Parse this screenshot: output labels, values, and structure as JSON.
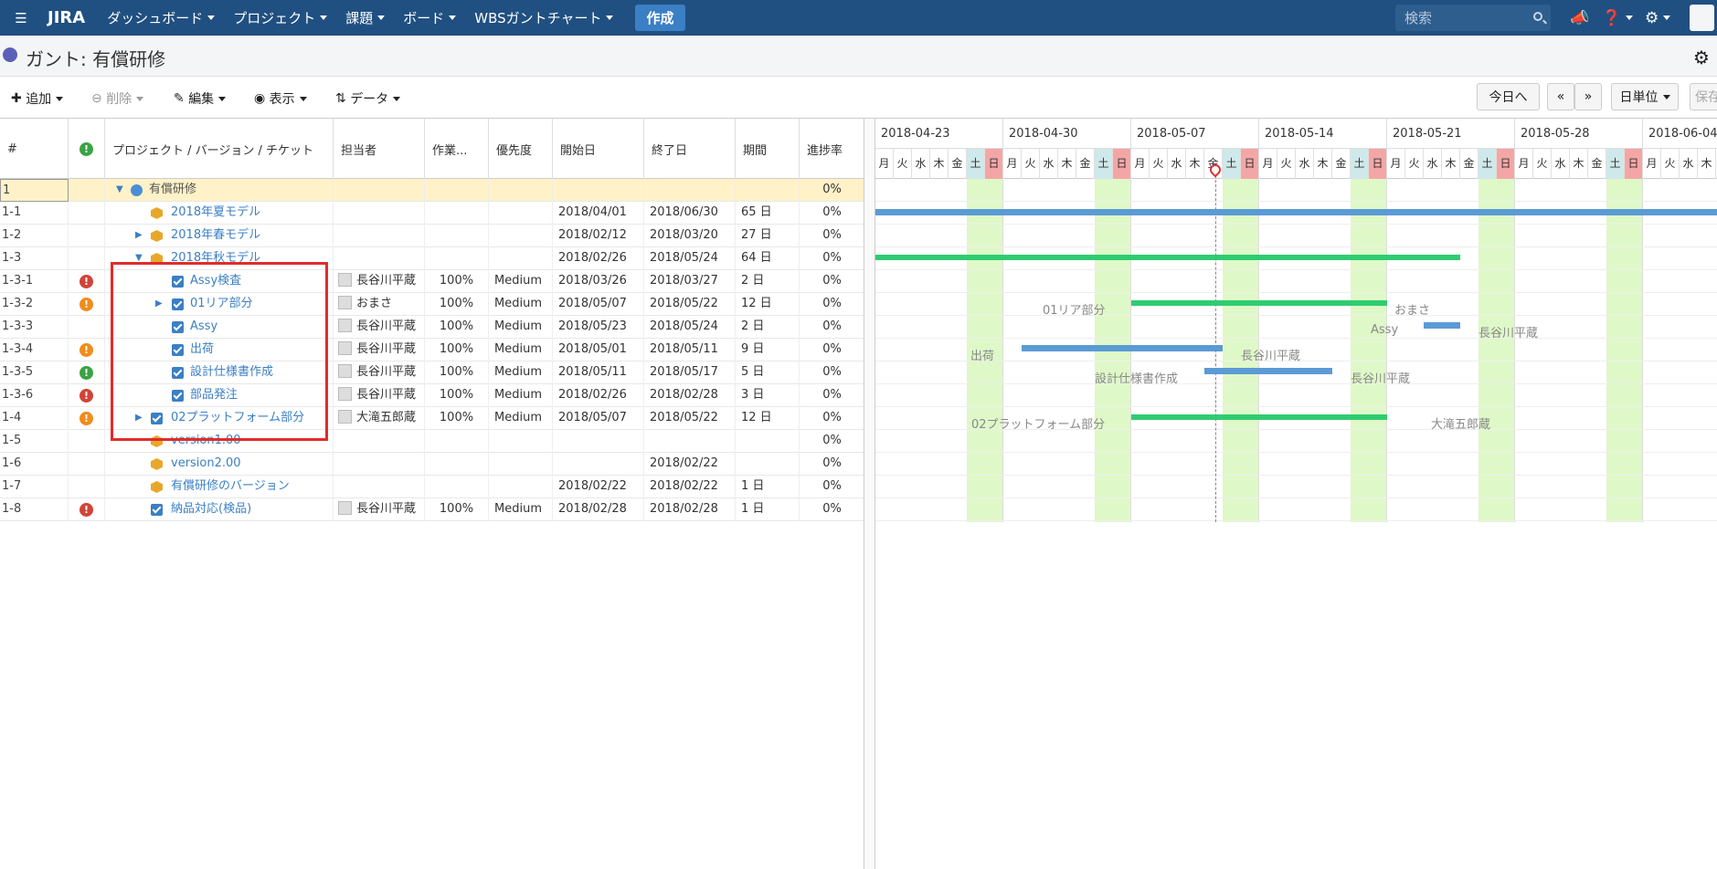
{
  "nav": {
    "logo": "JIRA",
    "items": [
      "ダッシュボード",
      "プロジェクト",
      "課題",
      "ボード",
      "WBSガントチャート"
    ],
    "create": "作成",
    "search_placeholder": "検索"
  },
  "page": {
    "title": "ガント: 有償研修"
  },
  "toolbar": {
    "add": "追加",
    "delete": "削除",
    "edit": "編集",
    "view": "表示",
    "data": "データ",
    "today": "今日へ",
    "prev": "«",
    "next": "»",
    "unit": "日単位",
    "save": "保存"
  },
  "columns": {
    "id": "#",
    "name": "プロジェクト / バージョン / チケット",
    "assignee": "担当者",
    "work": "作業...",
    "priority": "優先度",
    "start": "開始日",
    "end": "終了日",
    "duration": "期間",
    "progress": "進捗率"
  },
  "rows": [
    {
      "id": "1",
      "name": "有償研修",
      "prog": "0%"
    },
    {
      "id": "1-1",
      "name": "2018年夏モデル",
      "start": "2018/04/01",
      "end": "2018/06/30",
      "dur": "65 日",
      "prog": "0%"
    },
    {
      "id": "1-2",
      "name": "2018年春モデル",
      "start": "2018/02/12",
      "end": "2018/03/20",
      "dur": "27 日",
      "prog": "0%"
    },
    {
      "id": "1-3",
      "name": "2018年秋モデル",
      "start": "2018/02/26",
      "end": "2018/05/24",
      "dur": "64 日",
      "prog": "0%"
    },
    {
      "id": "1-3-1",
      "name": "Assy検査",
      "asg": "長谷川平蔵",
      "work": "100%",
      "prio": "Medium",
      "start": "2018/03/26",
      "end": "2018/03/27",
      "dur": "2 日",
      "prog": "0%"
    },
    {
      "id": "1-3-2",
      "name": "01リア部分",
      "asg": "おまさ",
      "work": "100%",
      "prio": "Medium",
      "start": "2018/05/07",
      "end": "2018/05/22",
      "dur": "12 日",
      "prog": "0%"
    },
    {
      "id": "1-3-3",
      "name": "Assy",
      "asg": "長谷川平蔵",
      "work": "100%",
      "prio": "Medium",
      "start": "2018/05/23",
      "end": "2018/05/24",
      "dur": "2 日",
      "prog": "0%"
    },
    {
      "id": "1-3-4",
      "name": "出荷",
      "asg": "長谷川平蔵",
      "work": "100%",
      "prio": "Medium",
      "start": "2018/05/01",
      "end": "2018/05/11",
      "dur": "9 日",
      "prog": "0%"
    },
    {
      "id": "1-3-5",
      "name": "設計仕様書作成",
      "asg": "長谷川平蔵",
      "work": "100%",
      "prio": "Medium",
      "start": "2018/05/11",
      "end": "2018/05/17",
      "dur": "5 日",
      "prog": "0%"
    },
    {
      "id": "1-3-6",
      "name": "部品発注",
      "asg": "長谷川平蔵",
      "work": "100%",
      "prio": "Medium",
      "start": "2018/02/26",
      "end": "2018/02/28",
      "dur": "3 日",
      "prog": "0%"
    },
    {
      "id": "1-4",
      "name": "02プラットフォーム部分",
      "asg": "大滝五郎蔵",
      "work": "100%",
      "prio": "Medium",
      "start": "2018/05/07",
      "end": "2018/05/22",
      "dur": "12 日",
      "prog": "0%"
    },
    {
      "id": "1-5",
      "name": "version1.00",
      "prog": "0%"
    },
    {
      "id": "1-6",
      "name": "version2.00",
      "end": "2018/02/22",
      "prog": "0%"
    },
    {
      "id": "1-7",
      "name": "有償研修のバージョン",
      "start": "2018/02/22",
      "end": "2018/02/22",
      "dur": "1 日",
      "prog": "0%"
    },
    {
      "id": "1-8",
      "name": "納品対応(検品)",
      "asg": "長谷川平蔵",
      "work": "100%",
      "prio": "Medium",
      "start": "2018/02/28",
      "end": "2018/02/28",
      "dur": "1 日",
      "prog": "0%"
    }
  ],
  "gantt": {
    "weeks": [
      "2018-04-23",
      "2018-04-30",
      "2018-05-07",
      "2018-05-14",
      "2018-05-21",
      "2018-05-28",
      "2018-06-04"
    ],
    "days": [
      "月",
      "火",
      "水",
      "木",
      "金",
      "土",
      "日"
    ],
    "labels": {
      "rear": "01リア部分",
      "rear_asg": "おまさ",
      "assy": "Assy",
      "assy_asg": "長谷川平蔵",
      "ship": "出荷",
      "ship_asg": "長谷川平蔵",
      "design": "設計仕様書作成",
      "design_asg": "長谷川平蔵",
      "platform": "02プラットフォーム部分",
      "platform_asg": "大滝五郎蔵"
    }
  },
  "colors": {
    "nav": "#205081",
    "accent": "#3b7fc4",
    "weekend": "#dff8c8",
    "bar_blue": "#5b9bd5",
    "bar_green": "#2ecc71",
    "highlight": "#e32b2b"
  }
}
